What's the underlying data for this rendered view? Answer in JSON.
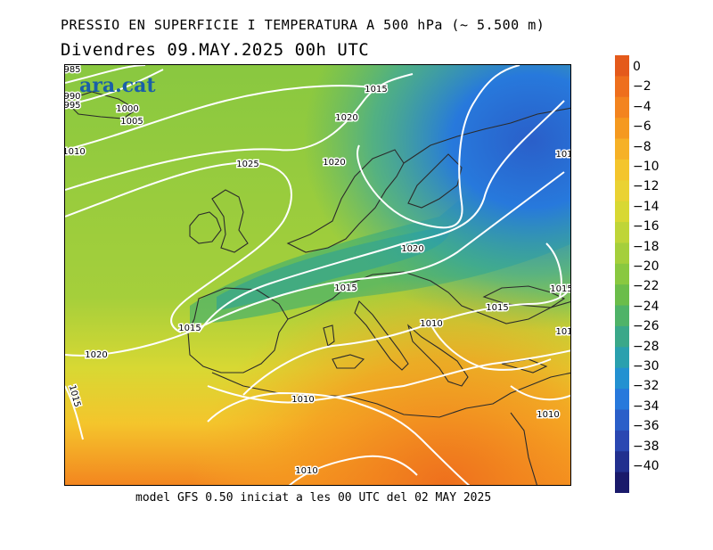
{
  "header": {
    "title_line1": "PRESSIO EN SUPERFICIE I TEMPERATURA A 500 hPa (~ 5.500 m)",
    "title_line2": "Divendres  09.MAY.2025 00h UTC"
  },
  "footer": {
    "model_text": "model GFS 0.50 iniciat a les 00 UTC del 02 MAY 2025"
  },
  "brand": {
    "text": "ara.cat"
  },
  "colorbar": {
    "levels": [
      "0",
      "−2",
      "−4",
      "−6",
      "−8",
      "−10",
      "−12",
      "−14",
      "−16",
      "−18",
      "−20",
      "−22",
      "−24",
      "−26",
      "−28",
      "−30",
      "−32",
      "−34",
      "−36",
      "−38",
      "−40"
    ],
    "colors": [
      "#e45a1b",
      "#ee6f1d",
      "#f3841f",
      "#f5991f",
      "#f6b126",
      "#f4c52c",
      "#ead233",
      "#d8d833",
      "#bfd538",
      "#a5cf3b",
      "#89c840",
      "#6bbd4a",
      "#4fb368",
      "#3aa889",
      "#2aa0ae",
      "#2391d1",
      "#2779dc",
      "#2a5fc9",
      "#2a47b2",
      "#22308f",
      "#1a1a6b"
    ]
  },
  "isobar_labels": [
    {
      "text": "1015"
    },
    {
      "text": "1000"
    },
    {
      "text": "1005"
    },
    {
      "text": "1010"
    },
    {
      "text": "1020"
    },
    {
      "text": "1025"
    },
    {
      "text": "1020"
    },
    {
      "text": "1020"
    },
    {
      "text": "1015"
    },
    {
      "text": "1015"
    },
    {
      "text": "1010"
    },
    {
      "text": "1015"
    },
    {
      "text": "1020"
    },
    {
      "text": "1010"
    },
    {
      "text": "1010"
    },
    {
      "text": "1010"
    },
    {
      "text": "1015"
    },
    {
      "text": "1015"
    },
    {
      "text": "101"
    },
    {
      "text": "101"
    },
    {
      "text": "1015"
    },
    {
      "text": "995"
    },
    {
      "text": "990"
    },
    {
      "text": "985"
    }
  ]
}
